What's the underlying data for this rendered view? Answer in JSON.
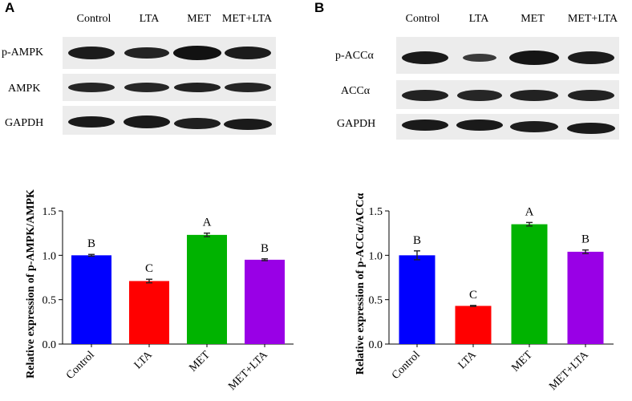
{
  "panels": [
    {
      "letter": "A",
      "blot": {
        "lanes": [
          "Control",
          "LTA",
          "MET",
          "MET+LTA"
        ],
        "rows": [
          {
            "label": "p-AMPK",
            "intensity": [
              0.8,
              0.75,
              0.9,
              0.8
            ]
          },
          {
            "label": "AMPK",
            "intensity": [
              0.75,
              0.75,
              0.78,
              0.76
            ]
          },
          {
            "label": "GAPDH",
            "intensity": [
              0.85,
              0.85,
              0.82,
              0.85
            ]
          }
        ]
      }
    },
    {
      "letter": "B",
      "blot": {
        "lanes": [
          "Control",
          "LTA",
          "MET",
          "MET+LTA"
        ],
        "rows": [
          {
            "label": "p-ACCα",
            "intensity": [
              0.85,
              0.5,
              0.88,
              0.82
            ]
          },
          {
            "label": "ACCα",
            "intensity": [
              0.8,
              0.75,
              0.8,
              0.8
            ]
          },
          {
            "label": "GAPDH",
            "intensity": [
              0.85,
              0.85,
              0.83,
              0.85
            ]
          }
        ]
      }
    }
  ],
  "chart_data": [
    {
      "type": "bar",
      "categories": [
        "Control",
        "LTA",
        "MET",
        "MET+LTA"
      ],
      "values": [
        1.0,
        0.71,
        1.23,
        0.95
      ],
      "errors": [
        0.01,
        0.02,
        0.02,
        0.01
      ],
      "letters": [
        "B",
        "C",
        "A",
        "B"
      ],
      "colors": [
        "#0000ff",
        "#ff0000",
        "#00b300",
        "#9900e6"
      ],
      "ylabel": "Relative expression of p-AMPK/AMPK",
      "ylim": [
        0,
        1.5
      ],
      "yticks": [
        "0.0",
        "0.5",
        "1.0",
        "1.5"
      ],
      "grid": false
    },
    {
      "type": "bar",
      "categories": [
        "Control",
        "LTA",
        "MET",
        "MET+LTA"
      ],
      "values": [
        1.0,
        0.43,
        1.35,
        1.04
      ],
      "errors": [
        0.05,
        0.005,
        0.02,
        0.02
      ],
      "letters": [
        "B",
        "C",
        "A",
        "B"
      ],
      "colors": [
        "#0000ff",
        "#ff0000",
        "#00b300",
        "#9900e6"
      ],
      "ylabel": "Relative expression of p-ACCα/ACCα",
      "ylim": [
        0,
        1.5
      ],
      "yticks": [
        "0.0",
        "0.5",
        "1.0",
        "1.5"
      ],
      "grid": false
    }
  ]
}
